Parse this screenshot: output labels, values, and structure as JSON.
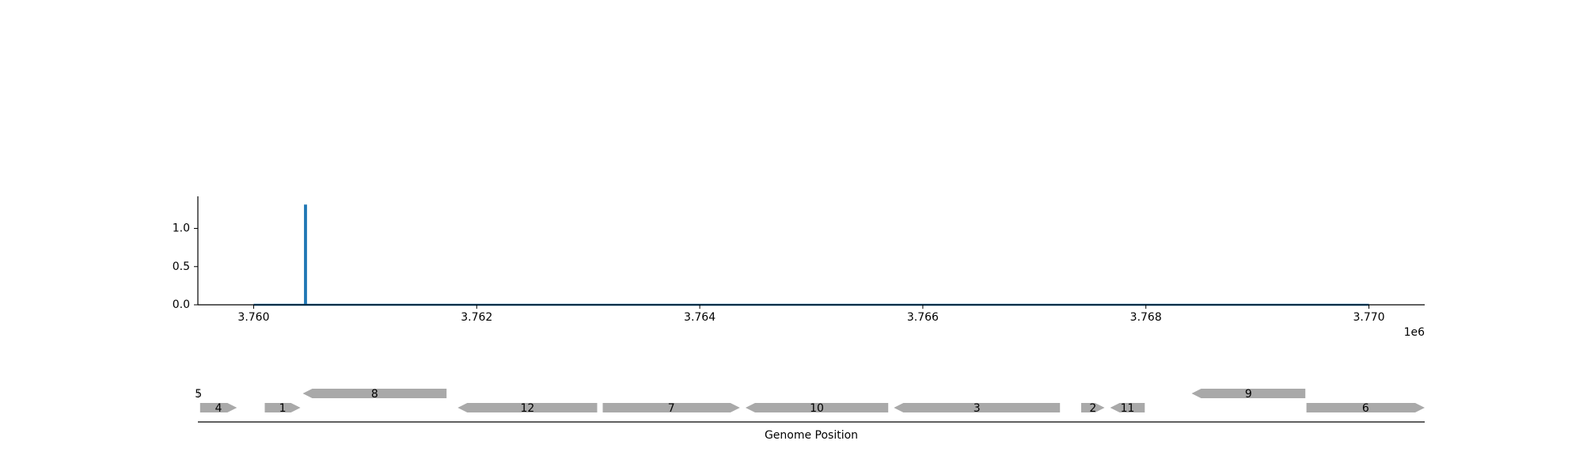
{
  "chart_data": [
    {
      "type": "line",
      "title": "",
      "xlabel": "",
      "ylabel": "",
      "x_offset_label": "1e6",
      "xlim": [
        3759500,
        3770500
      ],
      "ylim": [
        0,
        1.42
      ],
      "x_ticks": [
        {
          "value": 3760000,
          "label": "3.760"
        },
        {
          "value": 3762000,
          "label": "3.762"
        },
        {
          "value": 3764000,
          "label": "3.764"
        },
        {
          "value": 3766000,
          "label": "3.766"
        },
        {
          "value": 3768000,
          "label": "3.768"
        },
        {
          "value": 3770000,
          "label": "3.770"
        }
      ],
      "y_ticks": [
        {
          "value": 0.0,
          "label": "0.0"
        },
        {
          "value": 0.5,
          "label": "0.5"
        },
        {
          "value": 1.0,
          "label": "1.0"
        }
      ],
      "grid": false,
      "series": [
        {
          "color": "#1f77b4",
          "x": [
            3760000,
            3760460,
            3760460,
            3760470,
            3760470,
            3770000
          ],
          "y": [
            0,
            0,
            1.3,
            1.3,
            0,
            0
          ]
        }
      ]
    },
    {
      "type": "gene-track",
      "xlabel": "Genome Position",
      "xlim": [
        3759500,
        3770500
      ],
      "feature_color": "#a9a9a9",
      "genes": [
        {
          "label": "5",
          "start": 3759500,
          "end": 3759510,
          "strand": 1,
          "row": 1
        },
        {
          "label": "4",
          "start": 3759520,
          "end": 3759850,
          "strand": 1,
          "row": 0
        },
        {
          "label": "1",
          "start": 3760100,
          "end": 3760420,
          "strand": 1,
          "row": 0
        },
        {
          "label": "8",
          "start": 3760440,
          "end": 3761730,
          "strand": -1,
          "row": 1
        },
        {
          "label": "12",
          "start": 3761830,
          "end": 3763080,
          "strand": -1,
          "row": 0
        },
        {
          "label": "7",
          "start": 3763130,
          "end": 3764360,
          "strand": 1,
          "row": 0
        },
        {
          "label": "10",
          "start": 3764410,
          "end": 3765690,
          "strand": -1,
          "row": 0
        },
        {
          "label": "3",
          "start": 3765740,
          "end": 3767230,
          "strand": -1,
          "row": 0
        },
        {
          "label": "2",
          "start": 3767420,
          "end": 3767630,
          "strand": 1,
          "row": 0
        },
        {
          "label": "11",
          "start": 3767680,
          "end": 3767990,
          "strand": -1,
          "row": 0
        },
        {
          "label": "9",
          "start": 3768410,
          "end": 3769430,
          "strand": -1,
          "row": 1
        },
        {
          "label": "6",
          "start": 3769440,
          "end": 3770500,
          "strand": 1,
          "row": 0
        }
      ]
    }
  ]
}
